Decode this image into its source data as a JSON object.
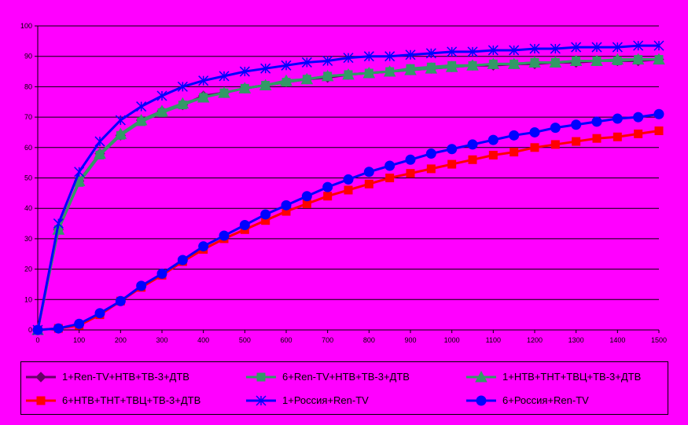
{
  "chart_data": {
    "type": "line",
    "x": [
      0,
      50,
      100,
      150,
      200,
      250,
      300,
      350,
      400,
      450,
      500,
      550,
      600,
      650,
      700,
      750,
      800,
      850,
      900,
      950,
      1000,
      1050,
      1100,
      1150,
      1200,
      1250,
      1300,
      1350,
      1400,
      1450,
      1500
    ],
    "xticks": [
      0,
      100,
      200,
      300,
      400,
      500,
      600,
      700,
      800,
      900,
      1000,
      1100,
      1200,
      1300,
      1400,
      1500
    ],
    "yticks": [
      0,
      10,
      20,
      30,
      40,
      50,
      60,
      70,
      80,
      90,
      100
    ],
    "xlim": [
      0,
      1500
    ],
    "ylim": [
      0,
      100
    ],
    "grid": "horizontal",
    "legend_position": "bottom",
    "title": "",
    "xlabel": "",
    "ylabel": "",
    "series": [
      {
        "name": "1+Ren-TV+НТВ+ТВ-3+ДТВ",
        "color": "#660066",
        "marker": "diamond",
        "values": [
          0,
          33,
          49,
          58,
          64,
          69,
          72,
          74,
          77,
          78,
          79.5,
          80.5,
          81.5,
          82.5,
          83,
          84,
          84.5,
          85,
          85.5,
          86,
          86.5,
          87,
          87,
          87.5,
          87.5,
          88,
          88,
          88.5,
          88.5,
          88.5,
          89
        ]
      },
      {
        "name": "6+Ren-TV+НТВ+ТВ-3+ДТВ",
        "color": "#339966",
        "marker": "square",
        "values": [
          0,
          33,
          48.5,
          57.5,
          64,
          68.5,
          71.5,
          74,
          76.5,
          78,
          79.5,
          80.5,
          81.5,
          82.5,
          83.5,
          84,
          84.5,
          85,
          86,
          86.5,
          87,
          87,
          87.5,
          87.5,
          88,
          88,
          88.5,
          88.5,
          88.5,
          89,
          89
        ]
      },
      {
        "name": "1+НТВ+ТНТ+ТВЦ+ТВ-3+ДТВ",
        "color": "#339966",
        "marker": "triangle",
        "values": [
          0,
          33,
          49,
          58,
          64.5,
          69,
          72,
          74.5,
          76.5,
          78,
          79.5,
          80.5,
          82,
          82.5,
          83.5,
          84,
          84.5,
          85,
          85.5,
          86,
          86.5,
          87,
          87.5,
          87.5,
          88,
          88,
          88.5,
          88.5,
          89,
          89,
          89
        ]
      },
      {
        "name": "6+НТВ+ТНТ+ТВЦ+ТВ-3+ДТВ",
        "color": "#ff0000",
        "marker": "square",
        "values": [
          0,
          0.5,
          1.5,
          5,
          9.5,
          14,
          18,
          22.5,
          26.5,
          30,
          33,
          36,
          39,
          41.5,
          44,
          46,
          48,
          50,
          51.5,
          53,
          54.5,
          56,
          57.5,
          58.5,
          60,
          61,
          62,
          63,
          63.5,
          64.5,
          65.5
        ]
      },
      {
        "name": "1+Россия+Ren-TV",
        "color": "#0000ff",
        "marker": "x",
        "values": [
          0,
          35,
          52,
          62,
          69,
          73.5,
          77,
          80,
          82,
          83.5,
          85,
          86,
          87,
          88,
          88.5,
          89.5,
          90,
          90,
          90.5,
          91,
          91.5,
          91.5,
          92,
          92,
          92.5,
          92.5,
          93,
          93,
          93,
          93.5,
          93.5
        ]
      },
      {
        "name": "6+Россия+Ren-TV",
        "color": "#0000ff",
        "marker": "circle",
        "values": [
          0,
          0.5,
          2,
          5.5,
          9.5,
          14.5,
          18.5,
          23,
          27.5,
          31,
          34.5,
          38,
          41,
          44,
          47,
          49.5,
          52,
          54,
          56,
          58,
          59.5,
          61,
          62.5,
          64,
          65,
          66.5,
          67.5,
          68.5,
          69.5,
          70,
          71
        ]
      }
    ]
  }
}
